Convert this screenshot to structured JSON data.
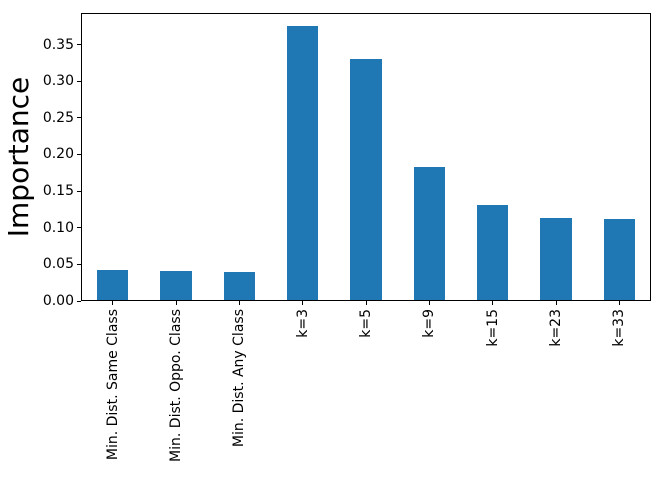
{
  "chart_data": {
    "type": "bar",
    "title": "",
    "xlabel": "",
    "ylabel": "Importance",
    "categories": [
      "Min. Dist. Same Class",
      "Min. Dist. Oppo. Class",
      "Min. Dist. Any Class",
      "k=3",
      "k=5",
      "k=9",
      "k=15",
      "k=23",
      "k=33"
    ],
    "values": [
      0.041,
      0.039,
      0.038,
      0.374,
      0.329,
      0.182,
      0.129,
      0.112,
      0.111
    ],
    "bar_color": "#1f77b4",
    "ylim": [
      0,
      0.393
    ],
    "yticks": [
      0.0,
      0.05,
      0.1,
      0.15,
      0.2,
      0.25,
      0.3,
      0.35
    ],
    "ytick_labels": [
      "0.00",
      "0.05",
      "0.10",
      "0.15",
      "0.20",
      "0.25",
      "0.30",
      "0.35"
    ],
    "xtick_rotation": 90,
    "grid": false,
    "legend_position": "none",
    "bar_width_fraction": 0.5
  }
}
